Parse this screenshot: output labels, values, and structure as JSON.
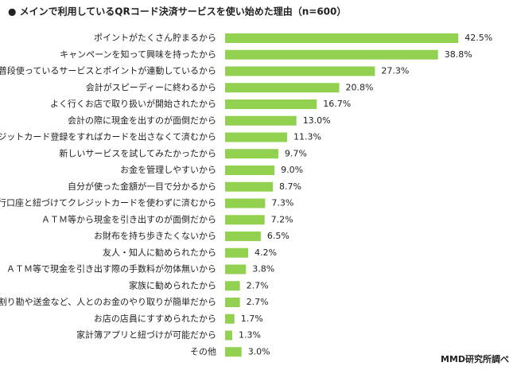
{
  "chart_data": {
    "type": "bar",
    "orientation": "horizontal",
    "title": "● メインで利用しているQRコード決済サービスを使い始めた理由（n=600）",
    "source": "MMD研究所調べ",
    "color": "#92d050",
    "categories": [
      "ポイントがたくさん貯まるから",
      "キャンペーンを知って興味を持ったから",
      "普段使っているサービスとポイントが連動しているから",
      "会計がスピーディーに終わるから",
      "よく行くお店で取り扱いが開始されたから",
      "会計の際に現金を出すのが面倒だから",
      "クレジットカード登録をすればカードを出さなくて済むから",
      "新しいサービスを試してみたかったから",
      "お金を管理しやすいから",
      "自分が使った金額が一目で分かるから",
      "銀行口座と紐づけてクレジットカードを使わずに済むから",
      "ＡＴＭ等から現金を引き出すのが面倒だから",
      "お財布を持ち歩きたくないから",
      "友人・知人に勧められたから",
      "ＡＴＭ等で現金を引き出す際の手数料が勿体無いから",
      "家族に勧められたから",
      "割り勘や送金など、人とのお金のやり取りが簡単だから",
      "お店の店員にすすめられたから",
      "家計簿アプリと紐づけが可能だから",
      "その他"
    ],
    "values": [
      42.5,
      38.8,
      27.3,
      20.8,
      16.7,
      13.0,
      11.3,
      9.7,
      9.0,
      8.7,
      7.3,
      7.2,
      6.5,
      4.2,
      3.8,
      2.7,
      2.7,
      1.7,
      1.3,
      3.0
    ],
    "value_labels": [
      "42.5%",
      "38.8%",
      "27.3%",
      "20.8%",
      "16.7%",
      "13.0%",
      "11.3%",
      "9.7%",
      "9.0%",
      "8.7%",
      "7.3%",
      "7.2%",
      "6.5%",
      "4.2%",
      "3.8%",
      "2.7%",
      "2.7%",
      "1.7%",
      "1.3%",
      "3.0%"
    ]
  }
}
